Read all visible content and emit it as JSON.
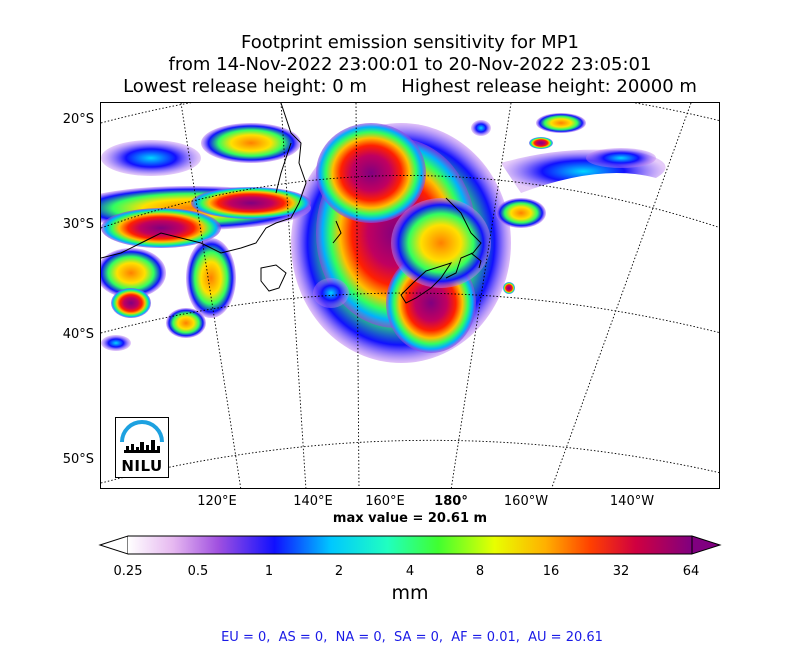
{
  "title": {
    "line1": "Footprint emission sensitivity for MP1",
    "line2": "from 14-Nov-2022 23:00:01 to 20-Nov-2022 23:05:01",
    "line3": "Lowest release height: 0 m      Highest release height: 20000 m"
  },
  "map": {
    "lat_labels": [
      "20°S",
      "30°S",
      "40°S",
      "50°S"
    ],
    "lon_labels": [
      "120°E",
      "140°E",
      "160°E",
      "180°",
      "160°W",
      "140°W"
    ],
    "max_value_text": "max value = 20.61 m",
    "graticule": "dotted",
    "logo_text": "NILU"
  },
  "colorbar": {
    "ticks": [
      "0.25",
      "0.5",
      "1",
      "2",
      "4",
      "8",
      "16",
      "32",
      "64"
    ],
    "unit": "mm",
    "colors": [
      "#ffffff",
      "#e0b0f0",
      "#9a40e0",
      "#1010ff",
      "#00d8ff",
      "#30ff60",
      "#ffe000",
      "#ff8000",
      "#ff0000",
      "#c00060",
      "#800080"
    ]
  },
  "summary": "EU = 0,  AS = 0,  NA = 0,  SA = 0,  AF = 0.01,  AU = 20.61",
  "colors": {
    "summary_text": "#1a1ae6",
    "coastline": "#000000"
  }
}
